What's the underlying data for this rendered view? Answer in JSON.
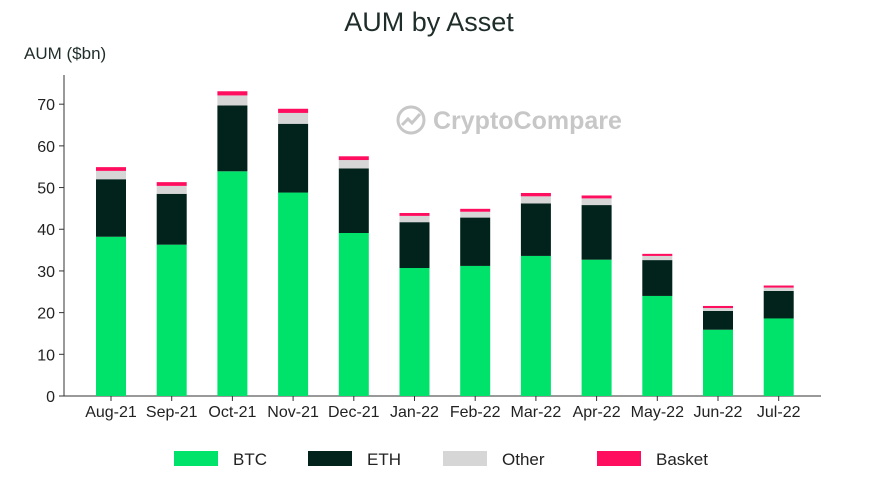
{
  "watermark": {
    "text": "CryptoCompare"
  },
  "chart_data": {
    "type": "bar",
    "stacked": true,
    "title": "AUM by Asset",
    "xlabel": "",
    "ylabel": "AUM ($bn)",
    "ylim": [
      0,
      77
    ],
    "yticks": [
      0,
      10,
      20,
      30,
      40,
      50,
      60,
      70
    ],
    "grid": false,
    "legend": "bottom",
    "categories": [
      "Aug-21",
      "Sep-21",
      "Oct-21",
      "Nov-21",
      "Dec-21",
      "Jan-22",
      "Feb-22",
      "Mar-22",
      "Apr-22",
      "May-22",
      "Jun-22",
      "Jul-22"
    ],
    "series": [
      {
        "name": "BTC",
        "color": "#00e36b",
        "values": [
          38.2,
          36.3,
          53.9,
          48.8,
          39.1,
          30.7,
          31.2,
          33.6,
          32.7,
          24.0,
          15.9,
          18.6
        ]
      },
      {
        "name": "ETH",
        "color": "#02231b",
        "values": [
          13.8,
          12.2,
          15.8,
          16.5,
          15.5,
          11.0,
          11.6,
          12.6,
          13.1,
          8.6,
          4.5,
          6.6
        ]
      },
      {
        "name": "Other",
        "color": "#d6d6d6",
        "values": [
          2.0,
          1.9,
          2.4,
          2.6,
          2.0,
          1.5,
          1.4,
          1.7,
          1.6,
          1.0,
          0.7,
          0.8
        ]
      },
      {
        "name": "Basket",
        "color": "#ff0e5f",
        "values": [
          0.9,
          0.9,
          1.0,
          1.0,
          0.9,
          0.7,
          0.7,
          0.8,
          0.7,
          0.5,
          0.5,
          0.5
        ]
      }
    ]
  }
}
